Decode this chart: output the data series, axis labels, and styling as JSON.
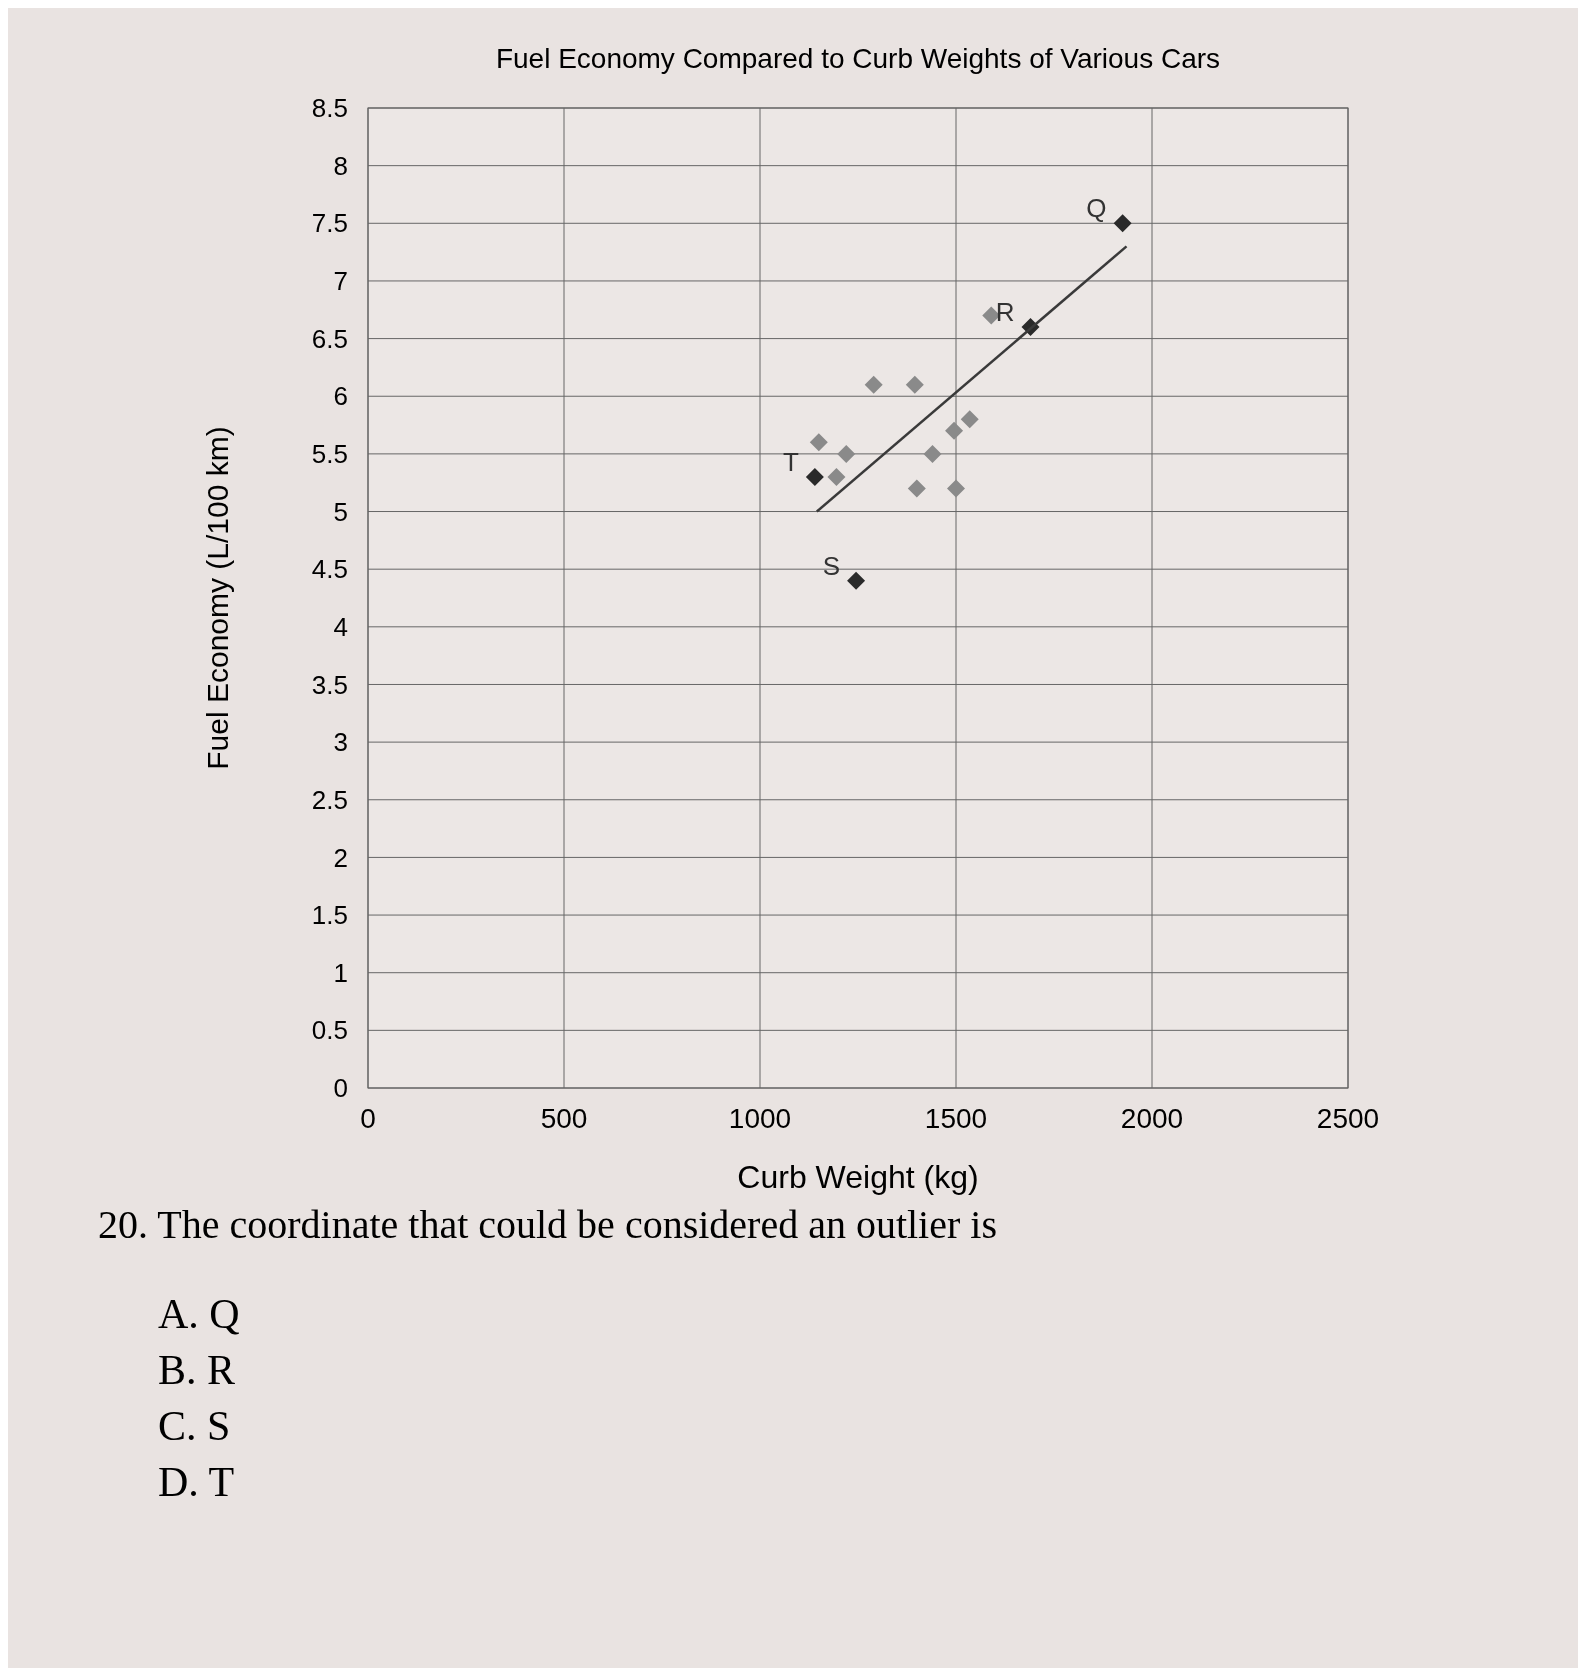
{
  "chart_data": {
    "type": "scatter",
    "title": "Fuel Economy Compared to Curb Weights of Various Cars",
    "xlabel": "Curb Weight (kg)",
    "ylabel": "Fuel Economy (L/100 km)",
    "xlim": [
      0,
      2500
    ],
    "xticks": [
      0,
      500,
      1000,
      1500,
      2000,
      2500
    ],
    "ylim": [
      0,
      8.5
    ],
    "yticks": [
      0,
      0.5,
      1,
      1.5,
      2,
      2.5,
      3,
      3.5,
      4,
      4.5,
      5,
      5.5,
      6,
      6.5,
      7,
      7.5,
      8,
      8.5
    ],
    "grid": true,
    "marker": "diamond",
    "series": [
      {
        "color": "#8a8a8a",
        "x": [
          1150,
          1220,
          1195,
          1290,
          1395,
          1440,
          1495,
          1535,
          1400,
          1500,
          1590
        ],
        "values": [
          5.6,
          5.5,
          5.3,
          6.1,
          6.1,
          5.5,
          5.7,
          5.8,
          5.2,
          5.2,
          6.7
        ]
      },
      {
        "color": "#2a2a2a",
        "x": [
          1140,
          1245,
          1690,
          1925
        ],
        "values": [
          5.3,
          4.4,
          6.6,
          7.5
        ]
      },
      {
        "type": "line",
        "color": "#3a3a3a",
        "marker": "none",
        "x": [
          1145,
          1935
        ],
        "values": [
          5.0,
          7.3
        ]
      }
    ],
    "annotations": [
      {
        "text": "T",
        "x": 1140,
        "y": 5.3
      },
      {
        "text": "S",
        "x": 1245,
        "y": 4.4
      },
      {
        "text": "R",
        "x": 1690,
        "y": 6.6
      },
      {
        "text": "Q",
        "x": 1925,
        "y": 7.5
      },
      "20. The coordinate that could be considered an outlier is",
      "A. Q",
      "B. R",
      "C. S",
      "D. T"
    ]
  }
}
